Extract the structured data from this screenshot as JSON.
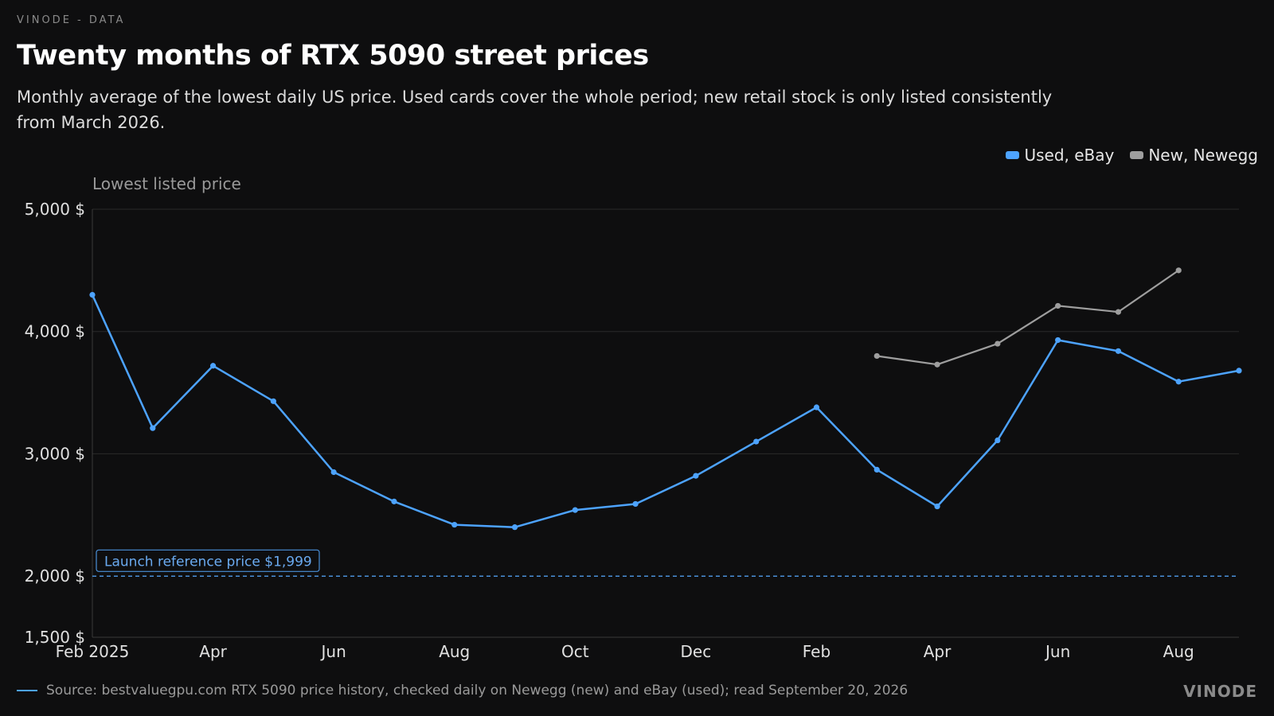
{
  "header": {
    "brand": "VINODE - DATA",
    "title": "Twenty months of RTX 5090 street prices",
    "subtitle": "Monthly average of the lowest daily US price. Used cards cover the whole period; new retail stock is only listed consistently from March 2026."
  },
  "footer": {
    "source": "Source: bestvaluegpu.com RTX 5090 price history, checked daily on Newegg (new) and eBay (used); read September 20, 2026",
    "brand": "VINODE"
  },
  "colors": {
    "used": "#4da3ff",
    "new": "#9e9e9e",
    "reference": "#4a90d9",
    "grid": "#2a2a2a"
  },
  "chart_data": {
    "type": "line",
    "ylabel": "Lowest listed price",
    "ylim": [
      1500,
      5000
    ],
    "y_ticks": [
      1500,
      2000,
      3000,
      4000,
      5000
    ],
    "y_tick_labels": [
      "1,500 $",
      "2,000 $",
      "3,000 $",
      "4,000 $",
      "5,000 $"
    ],
    "x": [
      "2025-02",
      "2025-03",
      "2025-04",
      "2025-05",
      "2025-06",
      "2025-07",
      "2025-08",
      "2025-09",
      "2025-10",
      "2025-11",
      "2025-12",
      "2026-01",
      "2026-02",
      "2026-03",
      "2026-04",
      "2026-05",
      "2026-06",
      "2026-07",
      "2026-08",
      "2026-09"
    ],
    "x_tick_labels": [
      {
        "x": "2025-02",
        "label": "Feb 2025"
      },
      {
        "x": "2025-04",
        "label": "Apr"
      },
      {
        "x": "2025-06",
        "label": "Jun"
      },
      {
        "x": "2025-08",
        "label": "Aug"
      },
      {
        "x": "2025-10",
        "label": "Oct"
      },
      {
        "x": "2025-12",
        "label": "Dec"
      },
      {
        "x": "2026-02",
        "label": "Feb"
      },
      {
        "x": "2026-04",
        "label": "Apr"
      },
      {
        "x": "2026-06",
        "label": "Jun"
      },
      {
        "x": "2026-08",
        "label": "Aug"
      }
    ],
    "series": [
      {
        "name": "Used, eBay",
        "color": "#4da3ff",
        "values": [
          4300,
          3210,
          3720,
          3430,
          2850,
          2610,
          2420,
          2400,
          2540,
          2590,
          2820,
          3100,
          3380,
          2870,
          2570,
          3110,
          3930,
          3840,
          3590,
          3680
        ]
      },
      {
        "name": "New, Newegg",
        "color": "#9e9e9e",
        "values": [
          null,
          null,
          null,
          null,
          null,
          null,
          null,
          null,
          null,
          null,
          null,
          null,
          null,
          3800,
          3730,
          3900,
          4210,
          4160,
          4500,
          null
        ]
      }
    ],
    "reference_line": {
      "value": 1999,
      "label": "Launch reference price $1,999"
    },
    "grid": true,
    "legend_position": "top-right"
  }
}
